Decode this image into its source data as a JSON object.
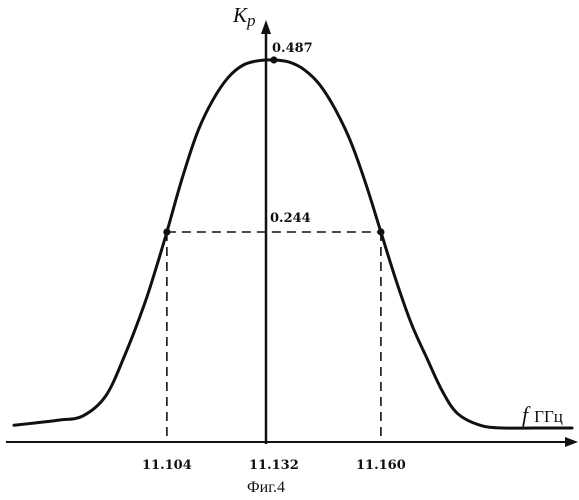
{
  "chart_data": {
    "type": "line",
    "title": "",
    "caption": "Фиг.4",
    "xlabel_symbol": "f",
    "xlabel_unit": "ГГц",
    "ylabel": "Kp",
    "ylabel_main": "K",
    "ylabel_sub": "p",
    "xlim": [
      11.064,
      11.21
    ],
    "ylim": [
      0,
      0.54
    ],
    "grid": false,
    "legend": "none",
    "x_ticks": [
      {
        "value": 11.104,
        "label": "11.104"
      },
      {
        "value": 11.132,
        "label": "11.132"
      },
      {
        "value": 11.16,
        "label": "11.160"
      }
    ],
    "series": [
      {
        "x": [
          11.064,
          11.07,
          11.076,
          11.082,
          11.088,
          11.093,
          11.098,
          11.101,
          11.104,
          11.108,
          11.112,
          11.116,
          11.12,
          11.124,
          11.128,
          11.132,
          11.136,
          11.14,
          11.144,
          11.148,
          11.152,
          11.156,
          11.16,
          11.164,
          11.168,
          11.172,
          11.176,
          11.18,
          11.186,
          11.192,
          11.2,
          11.21
        ],
        "y": [
          0.008,
          0.01,
          0.012,
          0.015,
          0.03,
          0.07,
          0.14,
          0.19,
          0.244,
          0.32,
          0.385,
          0.43,
          0.462,
          0.48,
          0.486,
          0.487,
          0.484,
          0.473,
          0.452,
          0.418,
          0.373,
          0.313,
          0.244,
          0.175,
          0.114,
          0.066,
          0.034,
          0.017,
          0.008,
          0.006,
          0.006,
          0.006
        ]
      }
    ],
    "markers": [
      {
        "x": 11.132,
        "y": 0.487,
        "label": "0.487"
      },
      {
        "x": 11.104,
        "y": 0.244
      },
      {
        "x": 11.16,
        "y": 0.244
      }
    ],
    "level_label": "0.244",
    "level_value": 0.244,
    "center_x": 11.132,
    "colors": {
      "line": "#111111",
      "background": "#ffffff"
    }
  }
}
